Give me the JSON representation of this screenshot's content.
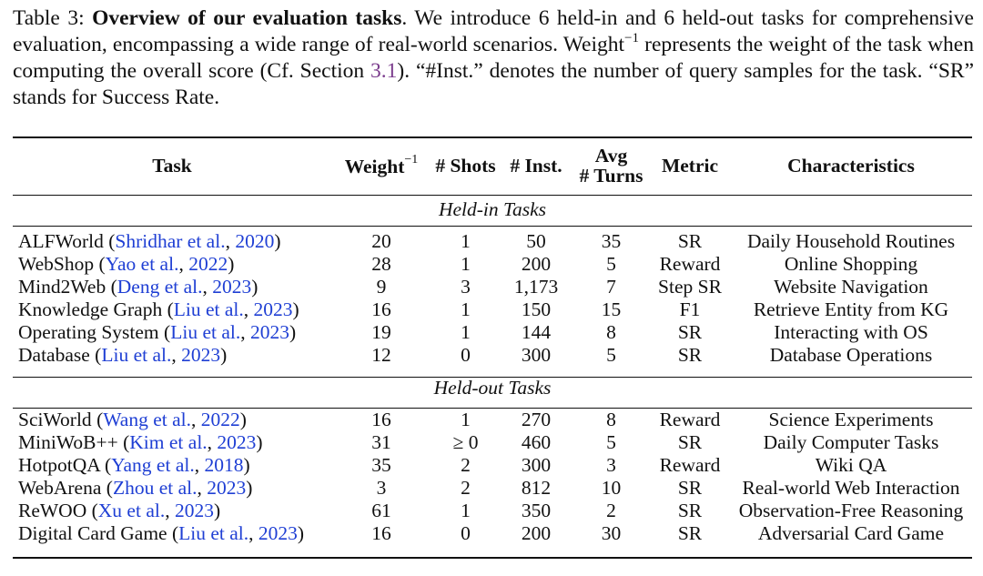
{
  "caption": {
    "label": "Table 3:",
    "bold_title": "Overview of our evaluation tasks",
    "text_a": ". We introduce 6 held-in and 6 held-out tasks for comprehensive evaluation, encompassing a wide range of real-world scenarios. Weight",
    "superscript": "−1",
    "text_b": " represents the weight of the task when computing the overall score (Cf. Section ",
    "section_ref": "3.1",
    "text_c": "). “#Inst.” denotes the number of query samples for the task. “SR” stands for Success Rate."
  },
  "table": {
    "headers": {
      "task": "Task",
      "weight": "Weight",
      "weight_sup": "−1",
      "shots": "# Shots",
      "inst": "# Inst.",
      "turns_line1": "Avg",
      "turns_line2": "# Turns",
      "metric": "Metric",
      "characteristics": "Characteristics"
    },
    "held_in_title": "Held-in Tasks",
    "held_out_title": "Held-out Tasks",
    "held_in": [
      {
        "name": "ALFWorld",
        "cite": "Shridhar et al.",
        "year": "2020",
        "weight": "20",
        "shots": "1",
        "inst": "50",
        "turns": "35",
        "metric": "SR",
        "characteristics": "Daily Household Routines"
      },
      {
        "name": "WebShop",
        "cite": "Yao et al.",
        "year": "2022",
        "weight": "28",
        "shots": "1",
        "inst": "200",
        "turns": "5",
        "metric": "Reward",
        "characteristics": "Online Shopping"
      },
      {
        "name": "Mind2Web",
        "cite": "Deng et al.",
        "year": "2023",
        "weight": "9",
        "shots": "3",
        "inst": "1,173",
        "turns": "7",
        "metric": "Step SR",
        "characteristics": "Website Navigation"
      },
      {
        "name": "Knowledge Graph",
        "cite": "Liu et al.",
        "year": "2023",
        "weight": "16",
        "shots": "1",
        "inst": "150",
        "turns": "15",
        "metric": "F1",
        "characteristics": "Retrieve Entity from KG"
      },
      {
        "name": "Operating System",
        "cite": "Liu et al.",
        "year": "2023",
        "weight": "19",
        "shots": "1",
        "inst": "144",
        "turns": "8",
        "metric": "SR",
        "characteristics": "Interacting with OS"
      },
      {
        "name": "Database",
        "cite": "Liu et al.",
        "year": "2023",
        "weight": "12",
        "shots": "0",
        "inst": "300",
        "turns": "5",
        "metric": "SR",
        "characteristics": "Database Operations"
      }
    ],
    "held_out": [
      {
        "name": "SciWorld",
        "cite": "Wang et al.",
        "year": "2022",
        "weight": "16",
        "shots": "1",
        "inst": "270",
        "turns": "8",
        "metric": "Reward",
        "characteristics": "Science Experiments"
      },
      {
        "name": "MiniWoB++",
        "cite": "Kim et al.",
        "year": "2023",
        "weight": "31",
        "shots": "≥ 0",
        "inst": "460",
        "turns": "5",
        "metric": "SR",
        "characteristics": "Daily Computer Tasks"
      },
      {
        "name": "HotpotQA",
        "cite": "Yang et al.",
        "year": "2018",
        "weight": "35",
        "shots": "2",
        "inst": "300",
        "turns": "3",
        "metric": "Reward",
        "characteristics": "Wiki QA"
      },
      {
        "name": "WebArena",
        "cite": "Zhou et al.",
        "year": "2023",
        "weight": "3",
        "shots": "2",
        "inst": "812",
        "turns": "10",
        "metric": "SR",
        "characteristics": "Real-world Web Interaction"
      },
      {
        "name": "ReWOO",
        "cite": "Xu et al.",
        "year": "2023",
        "weight": "61",
        "shots": "1",
        "inst": "350",
        "turns": "2",
        "metric": "SR",
        "characteristics": "Observation-Free Reasoning"
      },
      {
        "name": "Digital Card Game",
        "cite": "Liu et al.",
        "year": "2023",
        "weight": "16",
        "shots": "0",
        "inst": "200",
        "turns": "30",
        "metric": "SR",
        "characteristics": "Adversarial Card Game"
      }
    ]
  }
}
